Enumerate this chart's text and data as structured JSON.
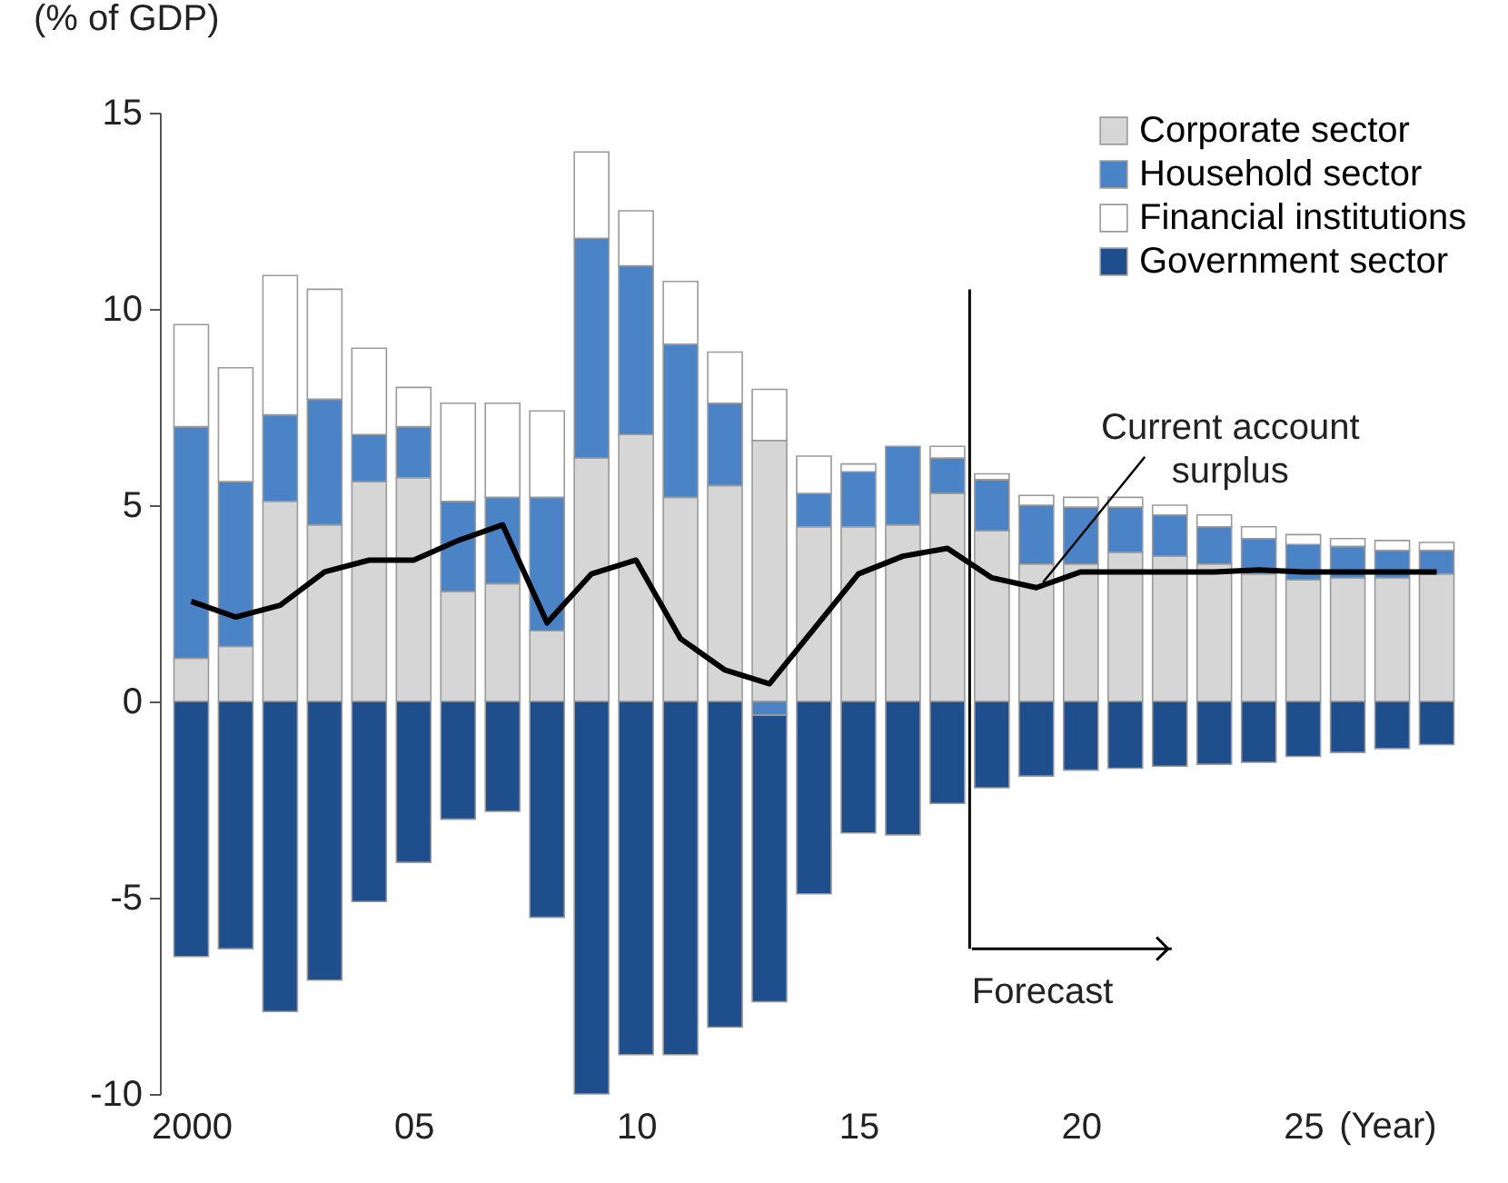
{
  "chart_data": {
    "type": "bar",
    "stacked": true,
    "ylabel": "(% of GDP)",
    "xlabel": "(Year)",
    "x": [
      2000,
      2001,
      2002,
      2003,
      2004,
      2005,
      2006,
      2007,
      2008,
      2009,
      2010,
      2011,
      2012,
      2013,
      2014,
      2015,
      2016,
      2017,
      2018,
      2019,
      2020,
      2021,
      2022,
      2023,
      2024,
      2025,
      2026,
      2027,
      2028
    ],
    "xlim": [
      1999.5,
      2028.5
    ],
    "xticks": [
      {
        "value": 2000,
        "label": "2000"
      },
      {
        "value": 2005,
        "label": "05"
      },
      {
        "value": 2010,
        "label": "10"
      },
      {
        "value": 2015,
        "label": "15"
      },
      {
        "value": 2020,
        "label": "20"
      },
      {
        "value": 2025,
        "label": "25"
      }
    ],
    "ylim": [
      -10,
      15
    ],
    "yticks": [
      -10,
      -5,
      0,
      5,
      10,
      15
    ],
    "grid": false,
    "legend": "top right",
    "series": [
      {
        "name": "Corporate sector",
        "color": "#d6d6d6",
        "values": [
          1.1,
          1.4,
          5.1,
          4.5,
          5.6,
          5.7,
          2.8,
          3.0,
          1.8,
          6.2,
          6.8,
          5.2,
          5.5,
          6.65,
          4.45,
          4.45,
          4.5,
          5.3,
          4.35,
          3.5,
          3.5,
          3.8,
          3.7,
          3.5,
          3.25,
          3.1,
          3.15,
          3.15,
          3.25
        ]
      },
      {
        "name": "Household sector",
        "color": "#4a84c6",
        "values": [
          5.9,
          4.2,
          2.2,
          3.2,
          1.2,
          1.3,
          2.3,
          2.2,
          3.4,
          5.6,
          4.3,
          3.9,
          2.1,
          -0.35,
          0.85,
          1.4,
          2.0,
          0.9,
          1.3,
          1.5,
          1.45,
          1.15,
          1.05,
          0.95,
          0.9,
          0.9,
          0.8,
          0.7,
          0.6
        ]
      },
      {
        "name": "Financial institutions",
        "color": "#ffffff",
        "values": [
          2.6,
          2.9,
          3.55,
          2.8,
          2.2,
          1.0,
          2.5,
          2.4,
          2.2,
          2.2,
          1.4,
          1.6,
          1.3,
          1.3,
          0.95,
          0.2,
          null,
          0.3,
          0.15,
          0.25,
          0.25,
          0.25,
          0.25,
          0.3,
          0.3,
          0.25,
          0.2,
          0.25,
          0.2
        ]
      },
      {
        "name": "Government sector",
        "color": "#1f4e8c",
        "values": [
          -6.5,
          -6.3,
          -7.9,
          -7.1,
          -5.1,
          -4.1,
          -3.0,
          -2.8,
          -5.5,
          -10.0,
          -9.0,
          -9.0,
          -8.3,
          -7.3,
          -4.9,
          -3.35,
          -3.4,
          -2.6,
          -2.2,
          -1.9,
          -1.75,
          -1.7,
          -1.65,
          -1.6,
          -1.55,
          -1.4,
          -1.3,
          -1.2,
          -1.1
        ]
      },
      {
        "type": "line",
        "color": "#000000",
        "values": [
          2.55,
          2.15,
          2.45,
          3.3,
          3.6,
          3.6,
          4.1,
          4.5,
          2.0,
          3.25,
          3.6,
          1.6,
          0.8,
          0.45,
          1.85,
          3.25,
          3.7,
          3.9,
          3.15,
          2.9,
          3.3,
          3.3,
          3.3,
          3.3,
          3.35,
          3.3,
          3.3,
          3.3,
          3.3
        ]
      }
    ],
    "ref_lines": [
      {
        "axis": "x",
        "value": 2017.5,
        "label": "Forecast"
      }
    ],
    "annotations": [
      {
        "text": "Current account surplus",
        "x": 2019,
        "y": 2.9
      }
    ]
  }
}
